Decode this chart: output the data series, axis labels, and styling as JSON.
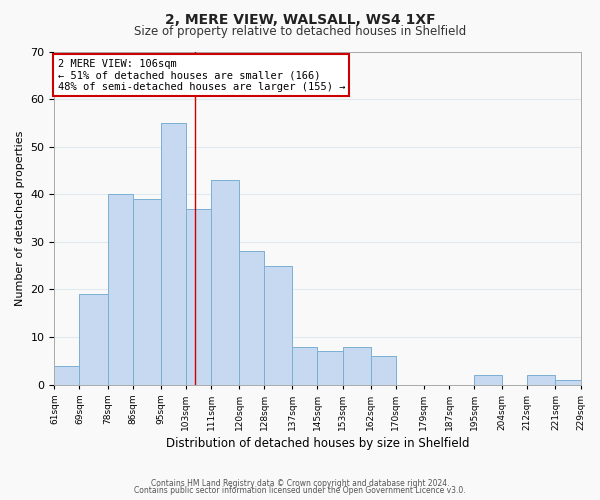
{
  "title": "2, MERE VIEW, WALSALL, WS4 1XF",
  "subtitle": "Size of property relative to detached houses in Shelfield",
  "xlabel": "Distribution of detached houses by size in Shelfield",
  "ylabel": "Number of detached properties",
  "footer_lines": [
    "Contains HM Land Registry data © Crown copyright and database right 2024.",
    "Contains public sector information licensed under the Open Government Licence v3.0."
  ],
  "bar_left_edges": [
    61,
    69,
    78,
    86,
    95,
    103,
    111,
    120,
    128,
    137,
    145,
    153,
    162,
    170,
    179,
    187,
    195,
    204,
    212,
    221
  ],
  "bar_widths": [
    8,
    9,
    8,
    9,
    8,
    8,
    9,
    8,
    9,
    8,
    8,
    9,
    8,
    9,
    8,
    8,
    9,
    8,
    9,
    8
  ],
  "bar_heights": [
    4,
    19,
    40,
    39,
    55,
    37,
    43,
    28,
    25,
    8,
    7,
    8,
    6,
    0,
    0,
    0,
    2,
    0,
    2,
    1
  ],
  "bar_color": "#c6d9f0",
  "bar_edge_color": "#7bafd4",
  "tick_labels": [
    "61sqm",
    "69sqm",
    "78sqm",
    "86sqm",
    "95sqm",
    "103sqm",
    "111sqm",
    "120sqm",
    "128sqm",
    "137sqm",
    "145sqm",
    "153sqm",
    "162sqm",
    "170sqm",
    "179sqm",
    "187sqm",
    "195sqm",
    "204sqm",
    "212sqm",
    "221sqm",
    "229sqm"
  ],
  "ylim": [
    0,
    70
  ],
  "yticks": [
    0,
    10,
    20,
    30,
    40,
    50,
    60,
    70
  ],
  "property_line_x": 106,
  "annotation_text": "2 MERE VIEW: 106sqm\n← 51% of detached houses are smaller (166)\n48% of semi-detached houses are larger (155) →",
  "annotation_box_color": "#ffffff",
  "annotation_border_color": "#cc0000",
  "grid_color": "#e0e8f0",
  "background_color": "#f9f9f9"
}
